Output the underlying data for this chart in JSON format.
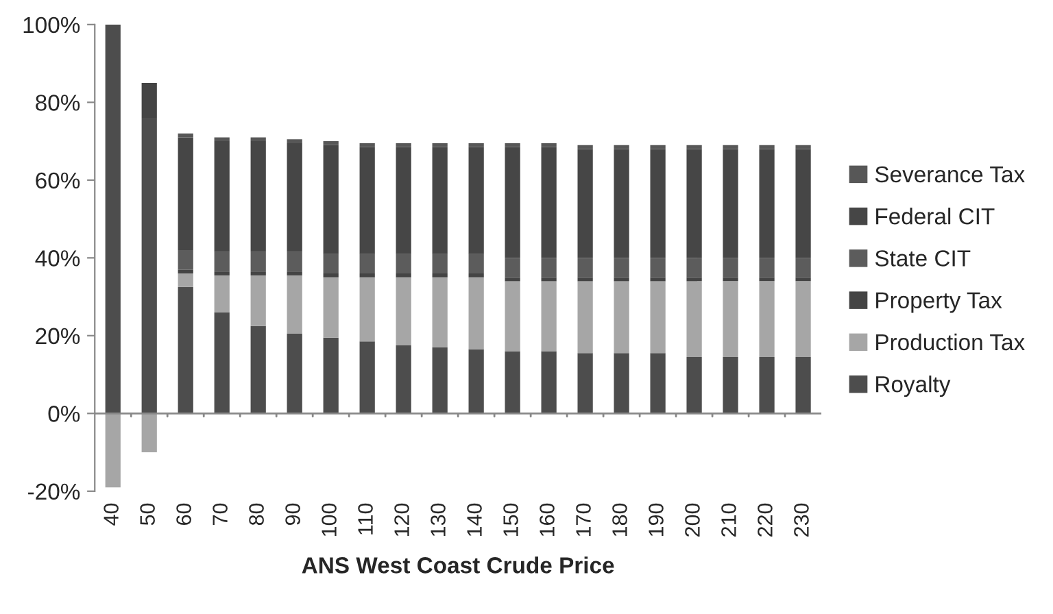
{
  "chart_data": {
    "type": "bar",
    "stacked": true,
    "xlabel": "ANS West Coast Crude Price",
    "categories": [
      "40",
      "50",
      "60",
      "70",
      "80",
      "90",
      "100",
      "110",
      "120",
      "130",
      "140",
      "150",
      "160",
      "170",
      "180",
      "190",
      "200",
      "210",
      "220",
      "230"
    ],
    "series": [
      {
        "name": "Royalty",
        "color": "#4d4d4d",
        "values": [
          100,
          76,
          32.5,
          26,
          22.5,
          20.5,
          19.5,
          18.5,
          17.5,
          17,
          16.5,
          16,
          16,
          15.5,
          15.5,
          15.5,
          14.5,
          14.5,
          14.5,
          14.5
        ]
      },
      {
        "name": "Production Tax",
        "color": "#a6a6a6",
        "values": [
          -19,
          -10,
          3.5,
          9.5,
          13,
          15,
          15.5,
          16.5,
          17.5,
          18,
          18.5,
          18,
          18,
          18.5,
          18.5,
          18.5,
          19.5,
          19.5,
          19.5,
          19.5
        ]
      },
      {
        "name": "Property Tax",
        "color": "#444444",
        "values": [
          0,
          9,
          1,
          1,
          1,
          1,
          1,
          1,
          1,
          1,
          1,
          1,
          1,
          1,
          1,
          1,
          1,
          1,
          1,
          1
        ]
      },
      {
        "name": "State CIT",
        "color": "#5c5c5c",
        "values": [
          0,
          0,
          5,
          5,
          5,
          5,
          5,
          5,
          5,
          5,
          5,
          5,
          5,
          5,
          5,
          5,
          5,
          5,
          5,
          5
        ]
      },
      {
        "name": "Federal CIT",
        "color": "#464646",
        "values": [
          0,
          0,
          29,
          28.5,
          28.5,
          28,
          28,
          27.5,
          27.5,
          27.5,
          27.5,
          28.5,
          28.5,
          28,
          28,
          28,
          28,
          28,
          28,
          28
        ]
      },
      {
        "name": "Severance Tax",
        "color": "#575757",
        "values": [
          0,
          0,
          1,
          1,
          1,
          1,
          1,
          1,
          1,
          1,
          1,
          1,
          1,
          1,
          1,
          1,
          1,
          1,
          1,
          1
        ]
      }
    ],
    "ylim": [
      -20,
      100
    ],
    "yticks": [
      {
        "value": -20,
        "label": "-20%"
      },
      {
        "value": 0,
        "label": "0%"
      },
      {
        "value": 20,
        "label": "20%"
      },
      {
        "value": 40,
        "label": "40%"
      },
      {
        "value": 60,
        "label": "60%"
      },
      {
        "value": 80,
        "label": "80%"
      },
      {
        "value": 100,
        "label": "100%"
      }
    ],
    "ref_lines": [
      {
        "axis": "y",
        "value": 0,
        "color": "#888888"
      }
    ],
    "grid": false,
    "legend": "right"
  }
}
